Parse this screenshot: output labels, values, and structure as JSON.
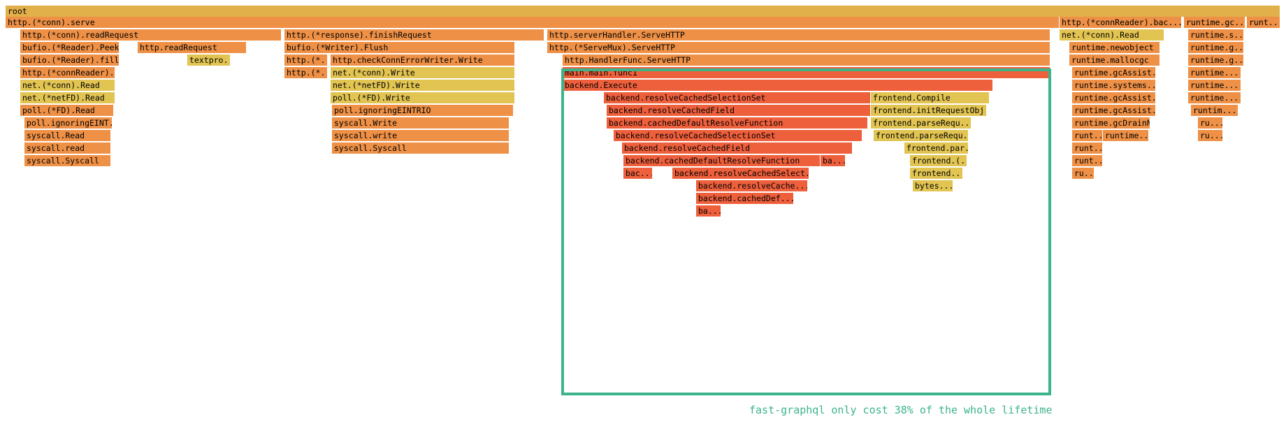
{
  "annotation": "fast-graphql only cost 38% of the whole lifetime",
  "colors": {
    "root": "#e2b04a",
    "orange": "#ee9046",
    "red": "#ee5f3c",
    "yellow": "#e2c452",
    "highlight": "#3bb48a"
  },
  "frames": [
    {
      "name": "root",
      "color": "root"
    },
    {
      "name": "http.(*conn).serve",
      "color": "orange"
    },
    {
      "name": "http.(*connReader).bac...",
      "color": "orange"
    },
    {
      "name": "runtime.gc...",
      "color": "orange"
    },
    {
      "name": "runt...",
      "color": "orange"
    },
    {
      "name": "http.(*conn).readRequest",
      "color": "orange"
    },
    {
      "name": "http.(*response).finishRequest",
      "color": "orange"
    },
    {
      "name": "http.serverHandler.ServeHTTP",
      "color": "orange"
    },
    {
      "name": "net.(*conn).Read",
      "color": "yellow"
    },
    {
      "name": "runtime.s...",
      "color": "orange"
    },
    {
      "name": "bufio.(*Reader).Peek",
      "color": "orange"
    },
    {
      "name": "http.readRequest",
      "color": "orange"
    },
    {
      "name": "bufio.(*Writer).Flush",
      "color": "orange"
    },
    {
      "name": "http.(*ServeMux).ServeHTTP",
      "color": "orange"
    },
    {
      "name": "runtime.newobject",
      "color": "orange"
    },
    {
      "name": "runtime.g...",
      "color": "orange"
    },
    {
      "name": "bufio.(*Reader).fill",
      "color": "orange"
    },
    {
      "name": "textpro...",
      "color": "yellow"
    },
    {
      "name": "http.(*...",
      "color": "orange"
    },
    {
      "name": "http.checkConnErrorWriter.Write",
      "color": "orange"
    },
    {
      "name": "http.HandlerFunc.ServeHTTP",
      "color": "orange"
    },
    {
      "name": "runtime.mallocgc",
      "color": "orange"
    },
    {
      "name": "runtime.g...",
      "color": "orange"
    },
    {
      "name": "http.(*connReader)...",
      "color": "orange"
    },
    {
      "name": "http.(*...",
      "color": "orange"
    },
    {
      "name": "net.(*conn).Write",
      "color": "yellow"
    },
    {
      "name": "main.main.func1",
      "color": "red"
    },
    {
      "name": "runtime.gcAssist...",
      "color": "orange"
    },
    {
      "name": "runtime....",
      "color": "orange"
    },
    {
      "name": "net.(*conn).Read",
      "color": "yellow"
    },
    {
      "name": "net.(*netFD).Write",
      "color": "yellow"
    },
    {
      "name": "backend.Execute",
      "color": "red"
    },
    {
      "name": "runtime.systems...",
      "color": "orange"
    },
    {
      "name": "runtime....",
      "color": "orange"
    },
    {
      "name": "net.(*netFD).Read",
      "color": "yellow"
    },
    {
      "name": "poll.(*FD).Write",
      "color": "yellow"
    },
    {
      "name": "backend.resolveCachedSelectionSet",
      "color": "red"
    },
    {
      "name": "frontend.Compile",
      "color": "yellow"
    },
    {
      "name": "runtime.gcAssist...",
      "color": "orange"
    },
    {
      "name": "runtime....",
      "color": "orange"
    },
    {
      "name": "poll.(*FD).Read",
      "color": "orange"
    },
    {
      "name": "poll.ignoringEINTRIO",
      "color": "orange"
    },
    {
      "name": "backend.resolveCachedField",
      "color": "red"
    },
    {
      "name": "frontend.initRequestObj...",
      "color": "yellow"
    },
    {
      "name": "runtime.gcAssist...",
      "color": "orange"
    },
    {
      "name": "runtim...",
      "color": "orange"
    },
    {
      "name": "poll.ignoringEINT...",
      "color": "orange"
    },
    {
      "name": "syscall.Write",
      "color": "orange"
    },
    {
      "name": "backend.cachedDefaultResolveFunction",
      "color": "red"
    },
    {
      "name": "frontend.parseRequ...",
      "color": "yellow"
    },
    {
      "name": "runtime.gcDrainN",
      "color": "orange"
    },
    {
      "name": "ru...",
      "color": "orange"
    },
    {
      "name": "syscall.Read",
      "color": "orange"
    },
    {
      "name": "syscall.write",
      "color": "orange"
    },
    {
      "name": "backend.resolveCachedSelectionSet",
      "color": "red"
    },
    {
      "name": "frontend.parseRequ...",
      "color": "yellow"
    },
    {
      "name": "runt...",
      "color": "orange"
    },
    {
      "name": "runtime...",
      "color": "orange"
    },
    {
      "name": "ru...",
      "color": "orange"
    },
    {
      "name": "syscall.read",
      "color": "orange"
    },
    {
      "name": "syscall.Syscall",
      "color": "orange"
    },
    {
      "name": "backend.resolveCachedField",
      "color": "red"
    },
    {
      "name": "frontend.par...",
      "color": "yellow"
    },
    {
      "name": "runt...",
      "color": "orange"
    },
    {
      "name": "syscall.Syscall",
      "color": "orange"
    },
    {
      "name": "backend.cachedDefaultResolveFunction",
      "color": "red"
    },
    {
      "name": "ba...",
      "color": "red"
    },
    {
      "name": "frontend.(...",
      "color": "yellow"
    },
    {
      "name": "runt...",
      "color": "orange"
    },
    {
      "name": "bac...",
      "color": "red"
    },
    {
      "name": "backend.resolveCachedSelect...",
      "color": "red"
    },
    {
      "name": "frontend....",
      "color": "yellow"
    },
    {
      "name": "ru...",
      "color": "orange"
    },
    {
      "name": "backend.resolveCache...",
      "color": "red"
    },
    {
      "name": "bytes....",
      "color": "yellow"
    },
    {
      "name": "backend.cachedDef...",
      "color": "red"
    },
    {
      "name": "ba...",
      "color": "red"
    }
  ]
}
